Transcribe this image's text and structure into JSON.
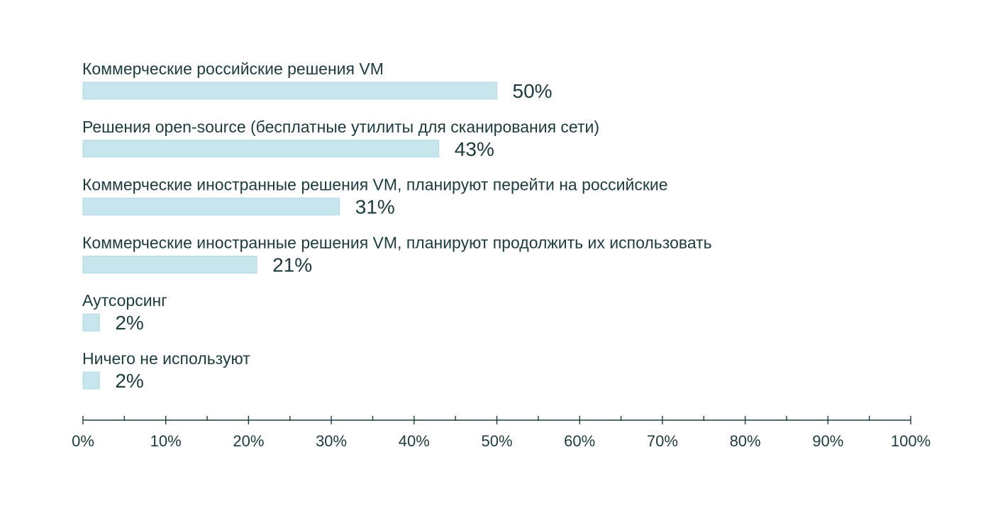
{
  "chart_data": {
    "type": "bar",
    "orientation": "horizontal",
    "categories": [
      "Коммерческие российские решения VM",
      "Решения open-source (бесплатные утилиты для сканирования сети)",
      "Коммерческие иностранные решения VM, планируют перейти на российские",
      "Коммерческие иностранные решения VM, планируют продолжить их использовать",
      "Аутсорсинг",
      "Ничего не используют"
    ],
    "values": [
      50,
      43,
      31,
      21,
      2,
      2
    ],
    "value_labels": [
      "50%",
      "43%",
      "31%",
      "21%",
      "2%",
      "2%"
    ],
    "xlim": [
      0,
      100
    ],
    "x_ticks": [
      0,
      10,
      20,
      30,
      40,
      50,
      60,
      70,
      80,
      90,
      100
    ],
    "x_tick_labels": [
      "0%",
      "10%",
      "20%",
      "30%",
      "40%",
      "50%",
      "60%",
      "70%",
      "80%",
      "90%",
      "100%"
    ],
    "grid": false,
    "title": "",
    "xlabel": "",
    "ylabel": "",
    "colors": {
      "bar": "#c6e5ec",
      "bar_stroke": "#b3dbe4",
      "text": "#1c3b3e",
      "axis": "#1c3b3e"
    }
  }
}
